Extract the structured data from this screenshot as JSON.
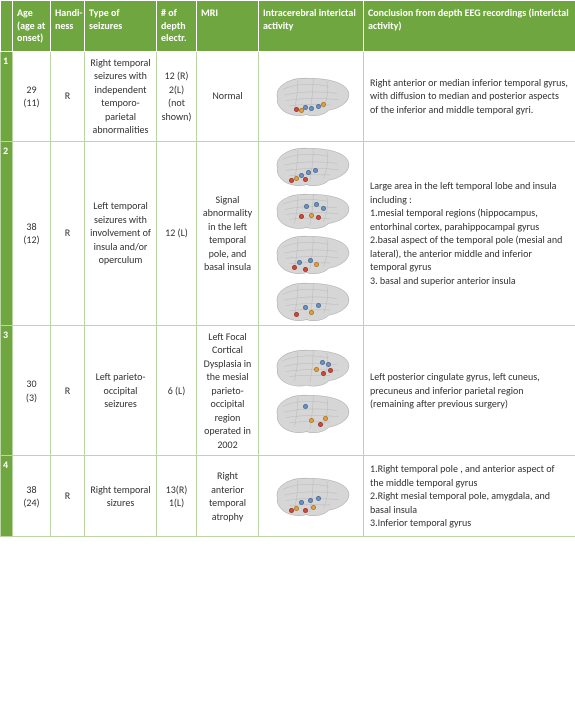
{
  "colors": {
    "header_bg": "#6fa63f",
    "header_fg": "#ffffff",
    "cell_border": "#bcd6a5",
    "brain_fill": "#d6d6d6",
    "brain_stroke": "#a8a8a8",
    "dot_blue": "#6b94c8",
    "dot_red": "#d24a3a",
    "dot_orange": "#e8a23c"
  },
  "headers": {
    "rownum": "",
    "age": "Age\n(age at onset)",
    "hand": "Handi-ness",
    "type": "Type of seizures",
    "elec": "# of depth electr.",
    "mri": "MRI",
    "img": "Intracerebral interictal activity",
    "conc": "Conclusion from depth EEG recordings (interictal activity)"
  },
  "rows": [
    {
      "num": "1",
      "age": "29\n(11)",
      "hand": "R",
      "type": "Right temporal seizures with independent temporo-parietal abnormalities",
      "elec": "12 (R)\n2(L)\n(not shown)",
      "mri": "Normal",
      "brains": [
        {
          "h": 52,
          "dots": [
            {
              "c": "dot_blue",
              "x": 40,
              "y": 70
            },
            {
              "c": "dot_blue",
              "x": 48,
              "y": 72
            },
            {
              "c": "dot_blue",
              "x": 56,
              "y": 68
            },
            {
              "c": "dot_red",
              "x": 30,
              "y": 76
            },
            {
              "c": "dot_orange",
              "x": 36,
              "y": 78
            },
            {
              "c": "dot_orange",
              "x": 62,
              "y": 64
            }
          ]
        }
      ],
      "conc": "Right anterior or median inferior temporal gyrus, with diffusion to median and posterior aspects of the inferior and middle temporal gyri."
    },
    {
      "num": "2",
      "age": "38\n(12)",
      "hand": "R",
      "type": "Left temporal seizures with involvement of insula and/or operculum",
      "elec": "12 (L)",
      "mri": "Signal abnormality in the left temporal pole, and basal insula",
      "brains": [
        {
          "h": 52,
          "dots": [
            {
              "c": "dot_blue",
              "x": 36,
              "y": 66
            },
            {
              "c": "dot_blue",
              "x": 44,
              "y": 60
            },
            {
              "c": "dot_blue",
              "x": 52,
              "y": 56
            },
            {
              "c": "dot_orange",
              "x": 30,
              "y": 74
            },
            {
              "c": "dot_red",
              "x": 24,
              "y": 78
            },
            {
              "c": "dot_red",
              "x": 40,
              "y": 76
            }
          ]
        },
        {
          "h": 48,
          "dots": [
            {
              "c": "dot_blue",
              "x": 42,
              "y": 34
            },
            {
              "c": "dot_blue",
              "x": 54,
              "y": 30
            },
            {
              "c": "dot_blue",
              "x": 62,
              "y": 40
            },
            {
              "c": "dot_orange",
              "x": 48,
              "y": 56
            },
            {
              "c": "dot_red",
              "x": 36,
              "y": 60
            },
            {
              "c": "dot_red",
              "x": 56,
              "y": 62
            }
          ]
        },
        {
          "h": 52,
          "dots": [
            {
              "c": "dot_blue",
              "x": 34,
              "y": 62
            },
            {
              "c": "dot_blue",
              "x": 46,
              "y": 58
            },
            {
              "c": "dot_orange",
              "x": 54,
              "y": 66
            },
            {
              "c": "dot_red",
              "x": 28,
              "y": 74
            },
            {
              "c": "dot_red",
              "x": 40,
              "y": 78
            }
          ]
        },
        {
          "h": 52,
          "dots": [
            {
              "c": "dot_blue",
              "x": 40,
              "y": 60
            },
            {
              "c": "dot_red",
              "x": 30,
              "y": 76
            },
            {
              "c": "dot_orange",
              "x": 48,
              "y": 72
            },
            {
              "c": "dot_blue",
              "x": 56,
              "y": 56
            }
          ]
        }
      ],
      "conc": "Large area in the left temporal lobe and insula including :\n1.mesial temporal regions (hippocampus, entorhinal cortex, parahippocampal gyrus\n2.basal aspect of the temporal pole (mesial and lateral), the anterior middle and inferior temporal gyrus\n3. basal and superior anterior insula"
    },
    {
      "num": "3",
      "age": "30\n(3)",
      "hand": "R",
      "type": "Left parieto-occipital seizures",
      "elec": "6 (L)",
      "mri": "Left Focal Cortical Dysplasia in the mesial parieto-occipital region operated in 2002",
      "brains": [
        {
          "h": 50,
          "dots": [
            {
              "c": "dot_blue",
              "x": 60,
              "y": 32
            },
            {
              "c": "dot_blue",
              "x": 68,
              "y": 38
            },
            {
              "c": "dot_red",
              "x": 70,
              "y": 52
            },
            {
              "c": "dot_red",
              "x": 62,
              "y": 58
            },
            {
              "c": "dot_orange",
              "x": 54,
              "y": 48
            }
          ]
        },
        {
          "h": 52,
          "dots": [
            {
              "c": "dot_blue",
              "x": 40,
              "y": 30
            },
            {
              "c": "dot_red",
              "x": 58,
              "y": 70
            },
            {
              "c": "dot_orange",
              "x": 48,
              "y": 62
            },
            {
              "c": "dot_orange",
              "x": 64,
              "y": 56
            }
          ]
        }
      ],
      "conc": "Left posterior cingulate gyrus, left cuneus, precuneus and inferior parietal region (remaining after previous surgery)"
    },
    {
      "num": "4",
      "age": "38\n(24)",
      "hand": "R",
      "type": "Right temporal sizures",
      "elec": "13(R)\n1(L)",
      "mri": "Right anterior temporal atrophy",
      "brains": [
        {
          "h": 52,
          "dots": [
            {
              "c": "dot_blue",
              "x": 36,
              "y": 58
            },
            {
              "c": "dot_blue",
              "x": 46,
              "y": 54
            },
            {
              "c": "dot_blue",
              "x": 56,
              "y": 50
            },
            {
              "c": "dot_orange",
              "x": 30,
              "y": 72
            },
            {
              "c": "dot_red",
              "x": 24,
              "y": 78
            },
            {
              "c": "dot_red",
              "x": 40,
              "y": 76
            },
            {
              "c": "dot_orange",
              "x": 50,
              "y": 70
            }
          ]
        }
      ],
      "conc": "1.Right temporal pole , and anterior aspect of the middle temporal gyrus\n2.Right mesial temporal pole, amygdala, and basal insula\n3.Inferior temporal gyrus"
    }
  ]
}
